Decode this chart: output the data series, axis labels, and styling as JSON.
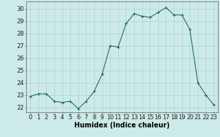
{
  "x": [
    0,
    1,
    2,
    3,
    4,
    5,
    6,
    7,
    8,
    9,
    10,
    11,
    12,
    13,
    14,
    15,
    16,
    17,
    18,
    19,
    20,
    21,
    22,
    23
  ],
  "y": [
    22.9,
    23.1,
    23.1,
    22.5,
    22.4,
    22.5,
    21.9,
    22.5,
    23.3,
    24.7,
    27.0,
    26.9,
    28.8,
    29.6,
    29.4,
    29.3,
    29.7,
    30.1,
    29.5,
    29.5,
    28.3,
    24.0,
    23.0,
    22.2
  ],
  "line_color": "#1a6b5a",
  "marker": "+",
  "marker_size": 3,
  "bg_color": "#cceae7",
  "grid_color": "#b0d0cc",
  "ylabel_ticks": [
    22,
    23,
    24,
    25,
    26,
    27,
    28,
    29,
    30
  ],
  "ylim": [
    21.6,
    30.6
  ],
  "xlim": [
    -0.5,
    23.5
  ],
  "xlabel": "Humidex (Indice chaleur)",
  "xlabel_fontsize": 7,
  "tick_fontsize": 6,
  "line_width": 0.8
}
